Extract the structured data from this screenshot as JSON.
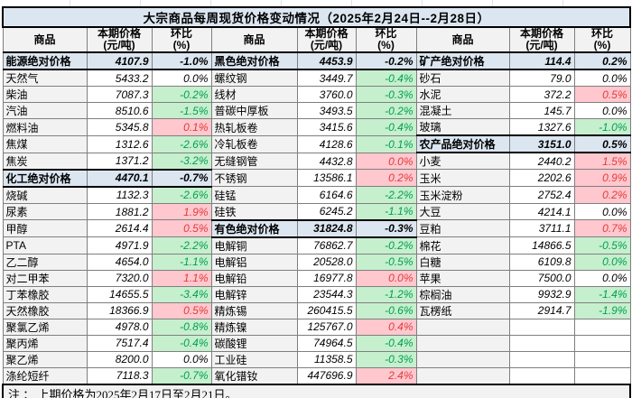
{
  "title": "大宗商品每周现货价格变动情况（2025年2月24日--2月28日）",
  "note": "注 ： 上期价格为2025年2月17日至2月21日。",
  "columns": {
    "commodity": "商品",
    "price_line1": "本期价格",
    "price_line2": "(元/吨)",
    "pct_line1": "环比",
    "pct_line2": "(%)"
  },
  "colors": {
    "category_row_bg": "#dce6f1",
    "title_bg": "#dce6f1",
    "increase_bg": "#ffc7ce",
    "increase_text": "#e03c3c",
    "decrease_bg": "#c6efce",
    "decrease_text": "#00a050",
    "name_cell_bg": "#f2f2f2"
  },
  "groups": [
    {
      "rows": [
        {
          "type": "category",
          "name": "能源绝对价格",
          "price": "4107.9",
          "pct": "-1.0%",
          "dir": "flat"
        },
        {
          "type": "item",
          "name": "天然气",
          "price": "5433.2",
          "pct": "0.0%",
          "dir": "flat"
        },
        {
          "type": "item",
          "name": "柴油",
          "price": "7087.3",
          "pct": "-0.2%",
          "dir": "down"
        },
        {
          "type": "item",
          "name": "汽油",
          "price": "8510.6",
          "pct": "-1.5%",
          "dir": "down"
        },
        {
          "type": "item",
          "name": "燃料油",
          "price": "5345.8",
          "pct": "0.1%",
          "dir": "up"
        },
        {
          "type": "item",
          "name": "焦煤",
          "price": "1312.6",
          "pct": "-2.6%",
          "dir": "down"
        },
        {
          "type": "item",
          "name": "焦炭",
          "price": "1371.2",
          "pct": "-3.2%",
          "dir": "down"
        },
        {
          "type": "category",
          "name": "化工绝对价格",
          "price": "4470.1",
          "pct": "-0.7%",
          "dir": "flat"
        },
        {
          "type": "item",
          "name": "烧碱",
          "price": "1132.3",
          "pct": "-2.6%",
          "dir": "down"
        },
        {
          "type": "item",
          "name": "尿素",
          "price": "1881.2",
          "pct": "1.9%",
          "dir": "up"
        },
        {
          "type": "item",
          "name": "甲醇",
          "price": "2614.4",
          "pct": "0.5%",
          "dir": "up"
        },
        {
          "type": "item",
          "name": "PTA",
          "price": "4971.9",
          "pct": "-2.2%",
          "dir": "down"
        },
        {
          "type": "item",
          "name": "乙二醇",
          "price": "4654.0",
          "pct": "-1.1%",
          "dir": "down"
        },
        {
          "type": "item",
          "name": "对二甲苯",
          "price": "7320.0",
          "pct": "1.1%",
          "dir": "up"
        },
        {
          "type": "item",
          "name": "丁苯橡胶",
          "price": "14655.5",
          "pct": "-3.4%",
          "dir": "down"
        },
        {
          "type": "item",
          "name": "天然橡胶",
          "price": "18366.9",
          "pct": "0.5%",
          "dir": "up"
        },
        {
          "type": "item",
          "name": "聚氯乙烯",
          "price": "4978.0",
          "pct": "-0.8%",
          "dir": "down"
        },
        {
          "type": "item",
          "name": "聚丙烯",
          "price": "7517.4",
          "pct": "-0.4%",
          "dir": "down"
        },
        {
          "type": "item",
          "name": "聚乙烯",
          "price": "8200.0",
          "pct": "0.0%",
          "dir": "flat"
        },
        {
          "type": "item",
          "name": "涤纶短纤",
          "price": "7118.3",
          "pct": "-0.7%",
          "dir": "down"
        }
      ]
    },
    {
      "rows": [
        {
          "type": "category",
          "name": "黑色绝对价格",
          "price": "4453.9",
          "pct": "-0.2%",
          "dir": "flat"
        },
        {
          "type": "item",
          "name": "螺纹钢",
          "price": "3449.7",
          "pct": "-0.4%",
          "dir": "down"
        },
        {
          "type": "item",
          "name": "线材",
          "price": "3760.0",
          "pct": "-0.3%",
          "dir": "down"
        },
        {
          "type": "item",
          "name": "普碳中厚板",
          "price": "3493.5",
          "pct": "-0.2%",
          "dir": "down"
        },
        {
          "type": "item",
          "name": "热轧板卷",
          "price": "3415.6",
          "pct": "-0.4%",
          "dir": "down"
        },
        {
          "type": "item",
          "name": "冷轧板卷",
          "price": "4128.6",
          "pct": "-0.1%",
          "dir": "down"
        },
        {
          "type": "item",
          "name": "无缝钢管",
          "price": "4432.8",
          "pct": "0.0%",
          "dir": "up"
        },
        {
          "type": "item",
          "name": "不锈钢",
          "price": "13586.1",
          "pct": "0.2%",
          "dir": "up"
        },
        {
          "type": "item",
          "name": "硅锰",
          "price": "6164.6",
          "pct": "-2.2%",
          "dir": "down"
        },
        {
          "type": "item",
          "name": "硅铁",
          "price": "6245.2",
          "pct": "-1.1%",
          "dir": "down"
        },
        {
          "type": "category",
          "name": "有色绝对价格",
          "price": "31824.8",
          "pct": "-0.3%",
          "dir": "flat"
        },
        {
          "type": "item",
          "name": "电解铜",
          "price": "76862.7",
          "pct": "-0.2%",
          "dir": "down"
        },
        {
          "type": "item",
          "name": "电解铝",
          "price": "20528.0",
          "pct": "-0.5%",
          "dir": "down"
        },
        {
          "type": "item",
          "name": "电解铅",
          "price": "16977.8",
          "pct": "0.0%",
          "dir": "up"
        },
        {
          "type": "item",
          "name": "电解锌",
          "price": "23544.3",
          "pct": "-1.2%",
          "dir": "down"
        },
        {
          "type": "item",
          "name": "精炼锡",
          "price": "260415.5",
          "pct": "-0.6%",
          "dir": "down"
        },
        {
          "type": "item",
          "name": "精炼镍",
          "price": "125767.0",
          "pct": "0.4%",
          "dir": "up"
        },
        {
          "type": "item",
          "name": "碳酸锂",
          "price": "74964.5",
          "pct": "-0.4%",
          "dir": "down"
        },
        {
          "type": "item",
          "name": "工业硅",
          "price": "11358.5",
          "pct": "-0.3%",
          "dir": "down"
        },
        {
          "type": "item",
          "name": "氧化镨钕",
          "price": "447696.9",
          "pct": "2.4%",
          "dir": "up"
        }
      ]
    },
    {
      "rows": [
        {
          "type": "category",
          "name": "矿产绝对价格",
          "price": "114.4",
          "pct": "0.2%",
          "dir": "flat"
        },
        {
          "type": "item",
          "name": "砂石",
          "price": "79.0",
          "pct": "0.0%",
          "dir": "flat"
        },
        {
          "type": "item",
          "name": "水泥",
          "price": "372.2",
          "pct": "0.5%",
          "dir": "up"
        },
        {
          "type": "item",
          "name": "混凝土",
          "price": "145.7",
          "pct": "0.0%",
          "dir": "flat"
        },
        {
          "type": "item",
          "name": "玻璃",
          "price": "1327.6",
          "pct": "-1.0%",
          "dir": "down"
        },
        {
          "type": "category",
          "name": "农产品绝对价格",
          "price": "3151.0",
          "pct": "0.5%",
          "dir": "flat"
        },
        {
          "type": "item",
          "name": "小麦",
          "price": "2440.2",
          "pct": "1.5%",
          "dir": "up"
        },
        {
          "type": "item",
          "name": "玉米",
          "price": "2202.6",
          "pct": "0.9%",
          "dir": "up"
        },
        {
          "type": "item",
          "name": "玉米淀粉",
          "price": "2752.4",
          "pct": "0.2%",
          "dir": "up"
        },
        {
          "type": "item",
          "name": "大豆",
          "price": "4214.1",
          "pct": "0.0%",
          "dir": "flat"
        },
        {
          "type": "item",
          "name": "豆粕",
          "price": "3711.1",
          "pct": "0.7%",
          "dir": "up"
        },
        {
          "type": "item",
          "name": "棉花",
          "price": "14866.5",
          "pct": "-0.5%",
          "dir": "down"
        },
        {
          "type": "item",
          "name": "白糖",
          "price": "6109.8",
          "pct": "0.0%",
          "dir": "down"
        },
        {
          "type": "item",
          "name": "苹果",
          "price": "7500.0",
          "pct": "0.0%",
          "dir": "flat"
        },
        {
          "type": "item",
          "name": "棕榈油",
          "price": "9932.9",
          "pct": "-1.4%",
          "dir": "down"
        },
        {
          "type": "item",
          "name": "瓦楞纸",
          "price": "2914.7",
          "pct": "-1.9%",
          "dir": "down"
        },
        {
          "type": "empty",
          "name": "",
          "price": "",
          "pct": "",
          "dir": "flat"
        },
        {
          "type": "empty",
          "name": "",
          "price": "",
          "pct": "",
          "dir": "flat"
        },
        {
          "type": "empty",
          "name": "",
          "price": "",
          "pct": "",
          "dir": "flat"
        },
        {
          "type": "empty",
          "name": "",
          "price": "",
          "pct": "",
          "dir": "flat"
        }
      ]
    }
  ]
}
